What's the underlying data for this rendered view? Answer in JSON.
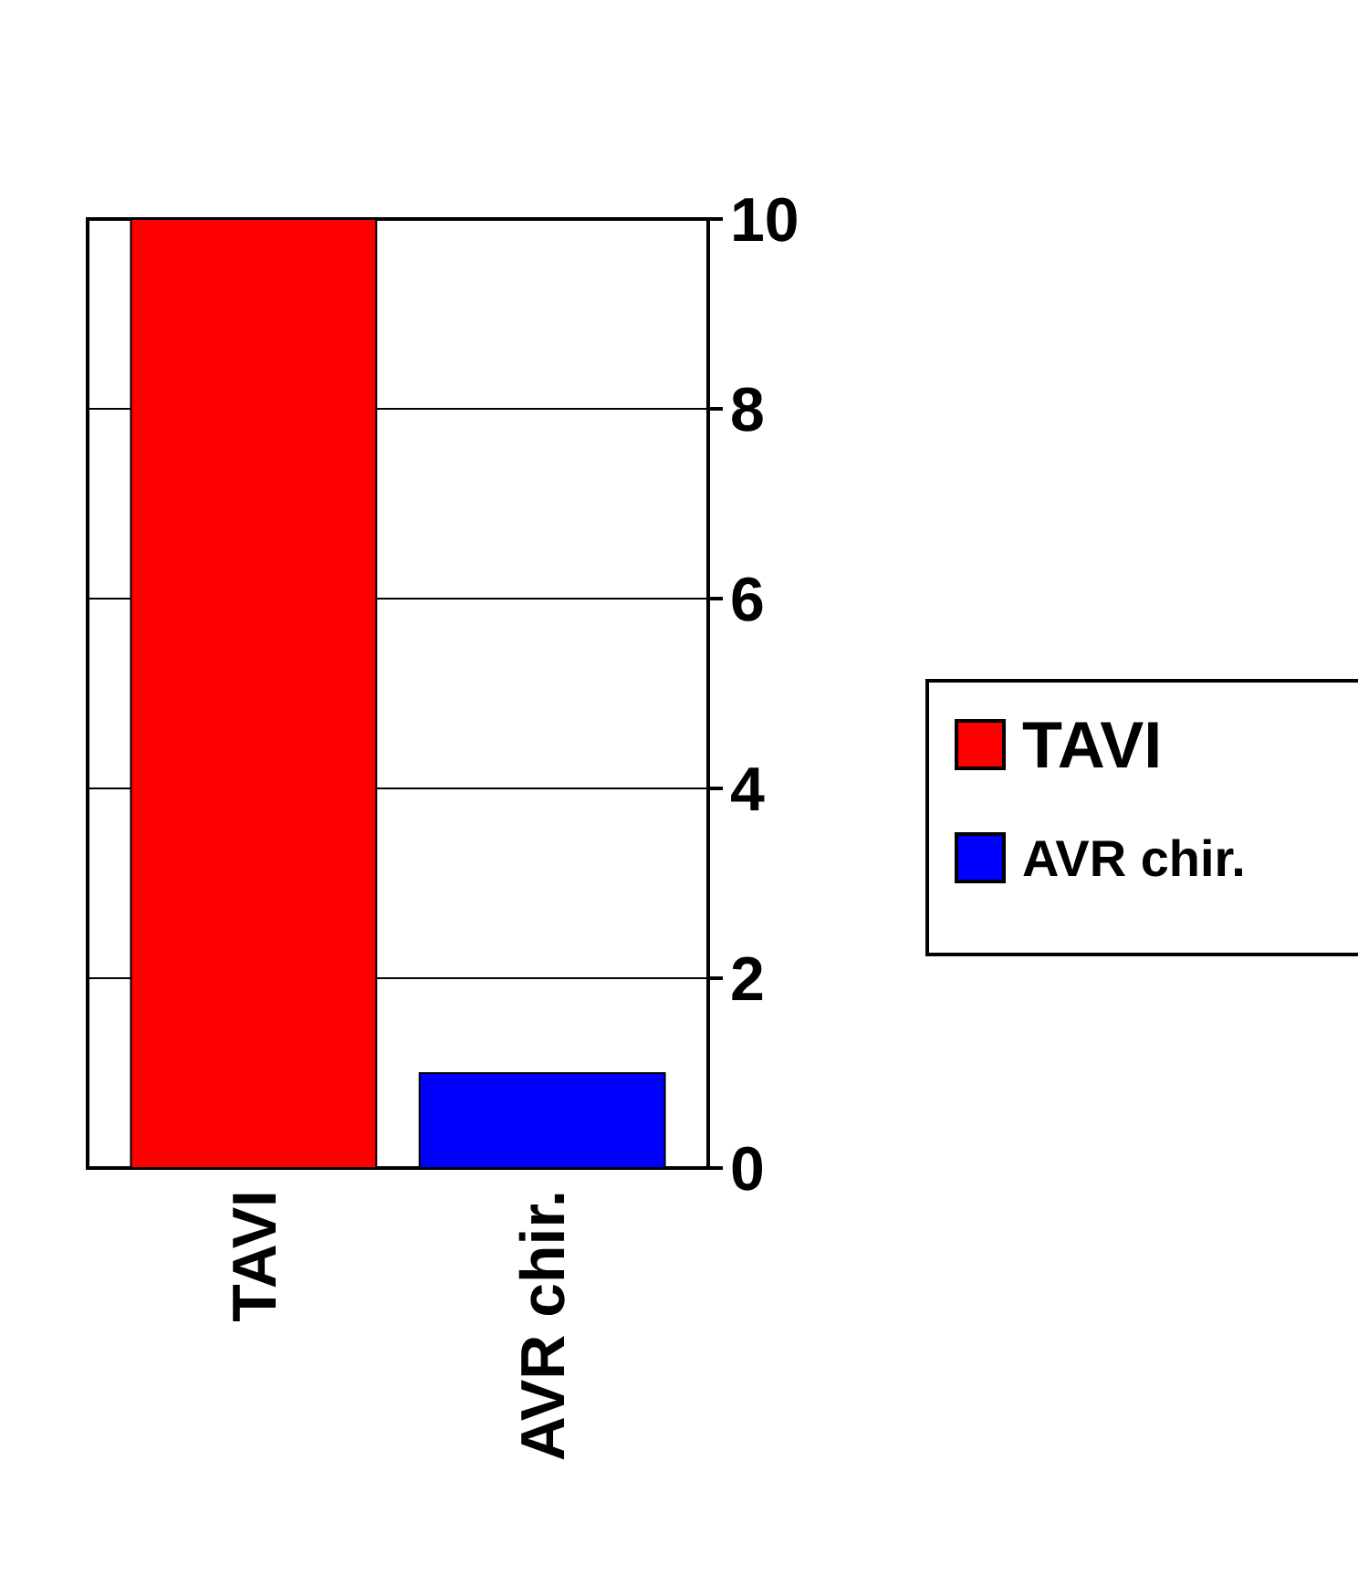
{
  "chart_data": {
    "type": "bar",
    "categories": [
      "TAVI",
      "AVR chir."
    ],
    "series": [
      {
        "name": "TAVI",
        "color": "#ff0000",
        "values": [
          10,
          null
        ]
      },
      {
        "name": "AVR chir.",
        "color": "#0000ff",
        "values": [
          null,
          1
        ]
      }
    ],
    "ylim": [
      0,
      10
    ],
    "yticks": [
      0,
      2,
      4,
      6,
      8,
      10
    ],
    "grid": "y",
    "legend": "right"
  }
}
